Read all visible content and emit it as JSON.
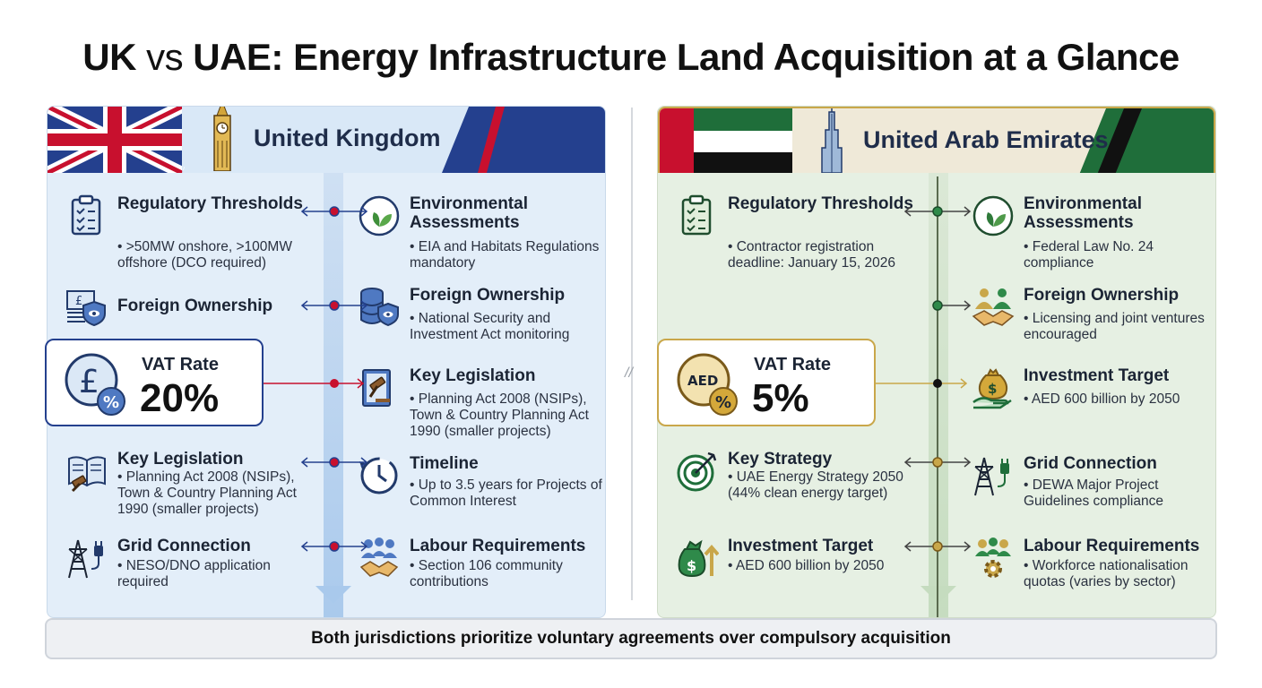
{
  "title": {
    "left": "UK",
    "vs": "vs",
    "right": "UAE: Energy Infrastructure Land Acquisition at a Glance"
  },
  "colors": {
    "uk_navy": "#24408e",
    "uk_red": "#c8102e",
    "uae_green": "#1f6e3a",
    "uae_gold": "#c9a74a",
    "icon_navy": "#223a6b"
  },
  "uk": {
    "header": "United Kingdom",
    "left_items": [
      {
        "title": "Regulatory Thresholds",
        "details": [
          ">50MW onshore, >100MW offshore (DCO required)"
        ],
        "icon": "clipboard-checklist-icon"
      },
      {
        "title": "Foreign Ownership",
        "details": [],
        "icon": "pound-note-shield-icon"
      },
      {
        "title": "Key Legislation",
        "details": [
          "Planning Act 2008 (NSIPs), Town & Country Planning Act 1990 (smaller projects)"
        ],
        "icon": "book-gavel-icon"
      },
      {
        "title": "Grid Connection",
        "details": [
          "NESO/DNO application required"
        ],
        "icon": "pylon-plug-icon"
      }
    ],
    "right_items": [
      {
        "title": "Environmental Assessments",
        "details": [
          "EIA and Habitats Regulations mandatory"
        ],
        "icon": "leaf-icon"
      },
      {
        "title": "Foreign Ownership",
        "details": [
          "National Security and Investment Act monitoring"
        ],
        "icon": "database-eye-shield-icon"
      },
      {
        "title": "Key Legislation",
        "details": [
          "Planning Act 2008 (NSIPs), Town & Country Planning Act 1990 (smaller projects)"
        ],
        "icon": "law-book-gavel-icon"
      },
      {
        "title": "Timeline",
        "details": [
          "Up to 3.5 years for Projects of Common Interest"
        ],
        "icon": "clock-icon"
      },
      {
        "title": "Labour Requirements",
        "details": [
          "Section 106 community contributions"
        ],
        "icon": "people-handshake-icon"
      }
    ],
    "vat": {
      "label": "VAT Rate",
      "value": "20%",
      "icon": "pound-percent-icon"
    }
  },
  "uae": {
    "header": "United Arab Emirates",
    "left_items": [
      {
        "title": "Regulatory Thresholds",
        "details": [
          "Contractor registration deadline: January 15, 2026"
        ],
        "icon": "clipboard-checklist-icon"
      },
      {
        "title": "Key Strategy",
        "details": [
          "UAE Energy Strategy 2050 (44% clean energy target)"
        ],
        "icon": "target-arrow-icon"
      },
      {
        "title": "Investment Target",
        "details": [
          "AED 600 billion by 2050"
        ],
        "icon": "money-bag-arrow-icon"
      }
    ],
    "right_items": [
      {
        "title": "Environmental Assessments",
        "details": [
          "Federal Law No. 24 compliance"
        ],
        "icon": "leaf-icon"
      },
      {
        "title": "Foreign Ownership",
        "details": [
          "Licensing and joint ventures encouraged"
        ],
        "icon": "people-handshake-icon"
      },
      {
        "title": "Investment Target",
        "details": [
          "AED 600 billion by 2050"
        ],
        "icon": "money-bag-hand-icon"
      },
      {
        "title": "Grid Connection",
        "details": [
          "DEWA Major Project Guidelines compliance"
        ],
        "icon": "pylon-plug-icon"
      },
      {
        "title": "Labour Requirements",
        "details": [
          "Workforce nationalisation quotas (varies by sector)"
        ],
        "icon": "people-gear-icon"
      }
    ],
    "vat": {
      "label": "VAT Rate",
      "value": "5%",
      "coin_text": "AED",
      "icon": "aed-percent-icon"
    }
  },
  "footer": "Both jurisdictions prioritize voluntary agreements over compulsory acquisition"
}
